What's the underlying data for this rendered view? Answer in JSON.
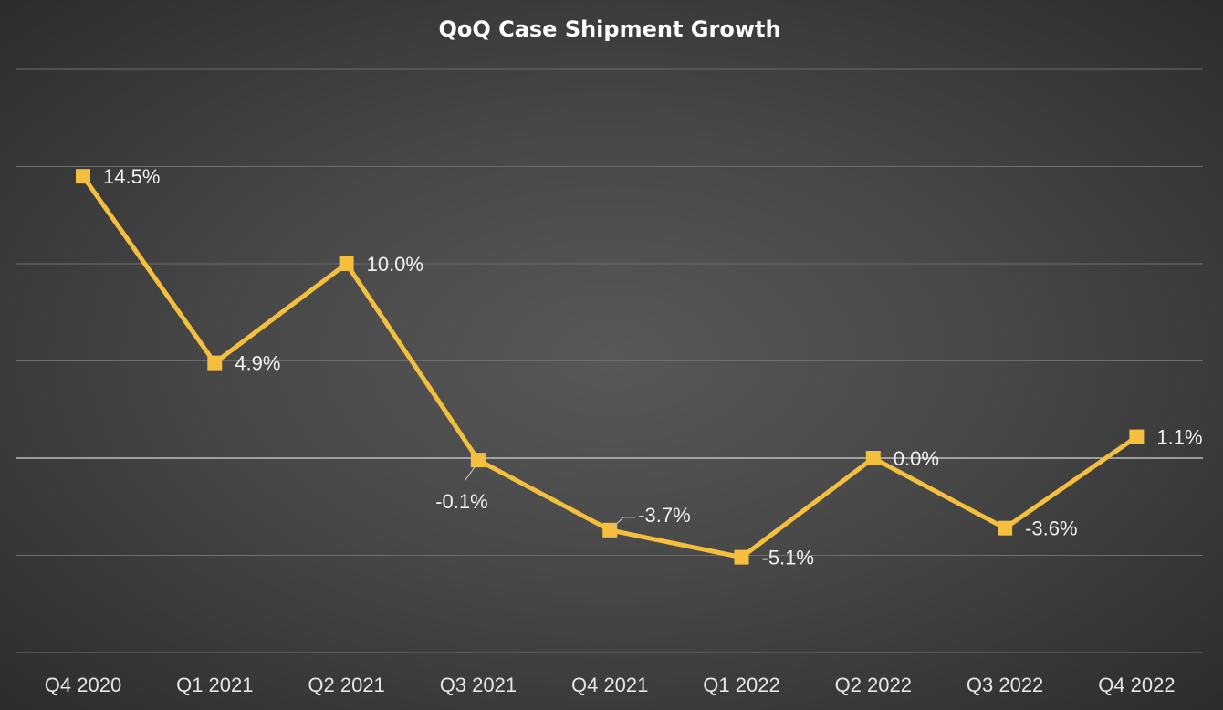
{
  "chart_data": {
    "type": "line",
    "title": "QoQ Case Shipment Growth",
    "xlabel": "",
    "ylabel": "",
    "categories": [
      "Q4 2020",
      "Q1 2021",
      "Q2 2021",
      "Q3 2021",
      "Q4 2021",
      "Q1 2022",
      "Q2 2022",
      "Q3 2022",
      "Q4 2022"
    ],
    "series": [
      {
        "values": [
          14.5,
          4.9,
          10.0,
          -0.1,
          -3.7,
          -5.1,
          0.0,
          -3.6,
          1.1
        ],
        "labels": [
          "14.5%",
          "4.9%",
          "10.0%",
          "-0.1%",
          "-3.7%",
          "-5.1%",
          "0.0%",
          "-3.6%",
          "1.1%"
        ],
        "color": "#F4BE3E",
        "marker": "square"
      }
    ],
    "ylim": [
      -10,
      20
    ],
    "y_gridlines": [
      -10,
      -5,
      0,
      5,
      10,
      15,
      20
    ],
    "y_tick_labels_visible": false,
    "grid": true,
    "legend": "none",
    "background": "#474747"
  }
}
